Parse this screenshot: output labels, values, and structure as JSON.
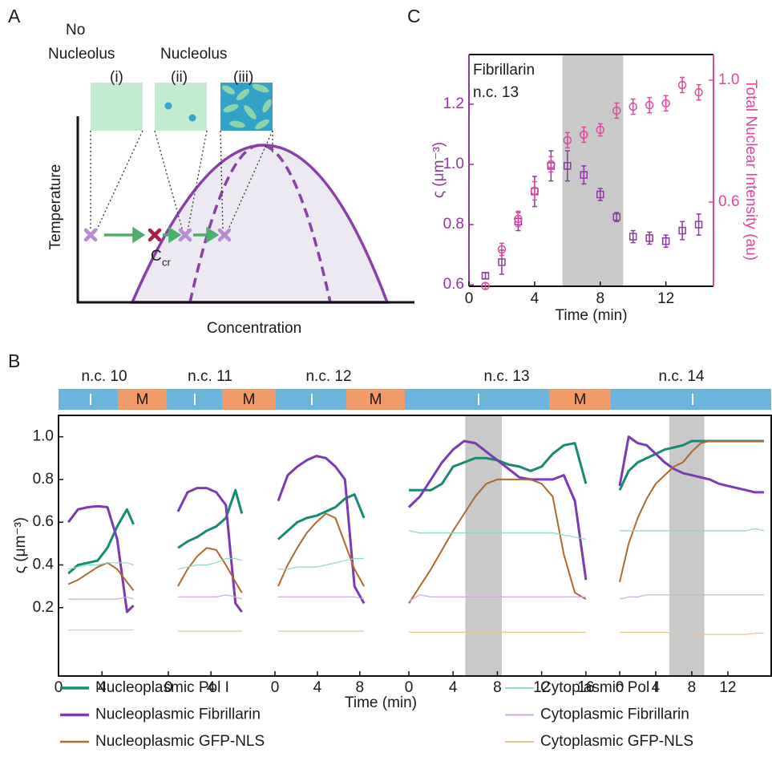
{
  "panel_labels": [
    "A",
    "B",
    "C"
  ],
  "diagram": {
    "no_nucleolus": [
      "No",
      "Nucleolus"
    ],
    "nucleolus": "Nucleolus",
    "states": [
      "(i)",
      "(ii)",
      "(iii)"
    ],
    "y_label": "Temperature",
    "x_label": "Concentration",
    "critical": {
      "main": "C",
      "sub": "cr"
    }
  },
  "cycle_bar": {
    "cycles": [
      "n.c. 10",
      "n.c. 11",
      "n.c. 12",
      "n.c. 13",
      "n.c. 14"
    ],
    "mitosis": [
      "M",
      "M",
      "M",
      "M"
    ]
  },
  "chart_data": [
    {
      "type": "scatter",
      "annotation": [
        "Fibrillarin",
        "n.c. 13"
      ],
      "xlabel": "Time (min)",
      "ylabel": "ς (μm⁻³)",
      "y2label": "Total Nuclear Intensity (au)",
      "xlim": [
        0,
        14.9
      ],
      "xticks": [
        0,
        4,
        8,
        12
      ],
      "ylim": [
        0.595,
        1.365
      ],
      "yticks": [
        0.6,
        0.8,
        {
          "value": 1,
          "label": "1.0"
        },
        1.2
      ],
      "y2lim": [
        0.324,
        1.084
      ],
      "y2ticks": [
        0.6,
        {
          "value": 1,
          "label": "1.0"
        }
      ],
      "shade": [
        5.7,
        9.4
      ],
      "shade_color": "#c9c9c9",
      "x": [
        1,
        2,
        3,
        4,
        5,
        6,
        7,
        8,
        9,
        10,
        11,
        12,
        13,
        14
      ],
      "series": [
        {
          "color": "#8b3a9e",
          "marker": "square",
          "values": [
            0.63,
            0.675,
            0.81,
            0.91,
            0.995,
            0.995,
            0.965,
            0.9,
            0.825,
            0.76,
            0.755,
            0.745,
            0.78,
            0.8
          ],
          "errors": [
            0.01,
            0.04,
            0.03,
            0.05,
            0.05,
            0.05,
            0.03,
            0.02,
            0.015,
            0.02,
            0.02,
            0.02,
            0.03,
            0.035
          ]
        },
        {
          "color": "#e0479e",
          "marker": "circle",
          "axis": "y2",
          "values": [
            0.325,
            0.445,
            0.545,
            0.637,
            0.724,
            0.803,
            0.821,
            0.837,
            0.9,
            0.913,
            0.918,
            0.924,
            0.984,
            0.96
          ],
          "errors": [
            0.01,
            0.02,
            0.025,
            0.03,
            0.025,
            0.025,
            0.025,
            0.02,
            0.025,
            0.025,
            0.025,
            0.025,
            0.025,
            0.025
          ]
        }
      ]
    },
    {
      "type": "line",
      "xlabel": "Time (min)",
      "ylabel": "ς (μm⁻³)",
      "legend": "bottom",
      "ylim": [
        -0.12,
        1.1
      ],
      "yticks": [
        0.2,
        0.4,
        0.6,
        0.8,
        {
          "value": 1,
          "label": "1.0"
        }
      ],
      "panels": [
        {
          "xlim": [
            0,
            7.3
          ],
          "xticks": [
            0,
            4
          ],
          "x": [
            0.9,
            1.8,
            2.7,
            3.6,
            4.5,
            5.4,
            6.3,
            6.9
          ]
        },
        {
          "xlim": [
            0,
            7.3
          ],
          "xticks": [
            0,
            4
          ],
          "x": [
            0.9,
            1.8,
            2.7,
            3.6,
            4.5,
            5.4,
            6.3,
            6.9
          ]
        },
        {
          "xlim": [
            0,
            9
          ],
          "xticks": [
            0,
            4,
            8
          ],
          "x": [
            0.3,
            1.2,
            2.1,
            3.0,
            3.9,
            4.8,
            5.7,
            6.6,
            7.5,
            8.4
          ]
        },
        {
          "xlim": [
            0,
            16.3
          ],
          "xticks": [
            0,
            4,
            8,
            12,
            16
          ],
          "shade": [
            5.1,
            8.4
          ],
          "x": [
            0,
            1,
            2,
            3,
            4,
            5,
            6,
            7,
            8,
            9,
            10,
            11,
            12,
            13,
            14,
            15,
            16
          ]
        },
        {
          "xlim": [
            0,
            16.9
          ],
          "xticks": [
            0,
            4,
            8,
            12
          ],
          "shade": [
            5.5,
            9.4
          ],
          "x": [
            0,
            1,
            2,
            3,
            4,
            5,
            6,
            7,
            8,
            9,
            10,
            11,
            12,
            13,
            14,
            15,
            16
          ]
        }
      ],
      "shade_color": "#c9c9c9",
      "series": [
        {
          "name": "Nucleoplasmic Pol I",
          "color": "#168a73",
          "width": 3,
          "values": [
            [
              0.36,
              0.4,
              0.41,
              0.42,
              0.48,
              0.58,
              0.66,
              0.59
            ],
            [
              0.48,
              0.51,
              0.53,
              0.56,
              0.58,
              0.62,
              0.75,
              0.64
            ],
            [
              0.52,
              0.56,
              0.6,
              0.62,
              0.63,
              0.65,
              0.67,
              0.71,
              0.73,
              0.62
            ],
            [
              0.75,
              0.75,
              0.75,
              0.78,
              0.86,
              0.88,
              0.9,
              0.9,
              0.89,
              0.87,
              0.86,
              0.84,
              0.86,
              0.92,
              0.96,
              0.97,
              0.78
            ],
            [
              0.75,
              0.84,
              0.88,
              0.9,
              0.92,
              0.94,
              0.95,
              0.96,
              0.98,
              0.98,
              0.98,
              0.98,
              0.98,
              0.98,
              0.98,
              0.98,
              0.98
            ]
          ]
        },
        {
          "name": "Nucleoplasmic Fibrillarin",
          "color": "#7a3ab3",
          "width": 3,
          "values": [
            [
              0.6,
              0.66,
              0.67,
              0.675,
              0.67,
              0.52,
              0.18,
              0.21
            ],
            [
              0.65,
              0.74,
              0.76,
              0.76,
              0.74,
              0.68,
              0.22,
              0.18
            ],
            [
              0.7,
              0.82,
              0.86,
              0.89,
              0.91,
              0.9,
              0.86,
              0.8,
              0.3,
              0.22
            ],
            [
              0.67,
              0.72,
              0.8,
              0.88,
              0.94,
              0.98,
              0.97,
              0.93,
              0.89,
              0.85,
              0.81,
              0.8,
              0.8,
              0.8,
              0.82,
              0.7,
              0.33
            ],
            [
              0.77,
              1.0,
              0.97,
              0.96,
              0.92,
              0.88,
              0.85,
              0.83,
              0.82,
              0.81,
              0.8,
              0.78,
              0.77,
              0.76,
              0.75,
              0.74,
              0.74
            ]
          ]
        },
        {
          "name": "Nucleoplasmic GFP-NLS",
          "color": "#b0692a",
          "width": 2,
          "values": [
            [
              0.31,
              0.33,
              0.36,
              0.39,
              0.41,
              0.38,
              0.32,
              0.28
            ],
            [
              0.3,
              0.38,
              0.44,
              0.48,
              0.47,
              0.4,
              0.32,
              0.27
            ],
            [
              0.3,
              0.4,
              0.48,
              0.55,
              0.6,
              0.64,
              0.62,
              0.5,
              0.38,
              0.3
            ],
            [
              0.22,
              0.3,
              0.38,
              0.47,
              0.56,
              0.64,
              0.72,
              0.78,
              0.8,
              0.8,
              0.8,
              0.8,
              0.78,
              0.72,
              0.45,
              0.27,
              0.24
            ],
            [
              0.32,
              0.5,
              0.62,
              0.71,
              0.78,
              0.82,
              0.86,
              0.88,
              0.93,
              0.97,
              0.98,
              0.98,
              0.98,
              0.98,
              0.98,
              0.98,
              0.98
            ]
          ]
        },
        {
          "name": "Cytoplasmic Pol I",
          "color": "#8ed6c6",
          "width": 1.2,
          "values": [
            [
              0.38,
              0.39,
              0.4,
              0.4,
              0.41,
              0.41,
              0.41,
              0.4
            ],
            [
              0.38,
              0.39,
              0.4,
              0.4,
              0.41,
              0.43,
              0.43,
              0.42
            ],
            [
              0.38,
              0.38,
              0.39,
              0.39,
              0.39,
              0.4,
              0.41,
              0.42,
              0.43,
              0.43
            ],
            [
              0.56,
              0.55,
              0.55,
              0.55,
              0.55,
              0.55,
              0.55,
              0.55,
              0.55,
              0.55,
              0.55,
              0.55,
              0.55,
              0.55,
              0.54,
              0.53,
              0.52
            ],
            [
              0.56,
              0.56,
              0.56,
              0.56,
              0.56,
              0.56,
              0.56,
              0.56,
              0.56,
              0.56,
              0.56,
              0.56,
              0.56,
              0.56,
              0.56,
              0.57,
              0.56
            ]
          ]
        },
        {
          "name": "Cytoplasmic Fibrillarin",
          "color": "#caa8e2",
          "width": 1.2,
          "values": [
            [
              0.24,
              0.24,
              0.24,
              0.24,
              0.24,
              0.24,
              0.25,
              0.24
            ],
            [
              0.25,
              0.25,
              0.25,
              0.25,
              0.25,
              0.26,
              0.25,
              0.24
            ],
            [
              0.25,
              0.25,
              0.25,
              0.25,
              0.25,
              0.25,
              0.25,
              0.25,
              0.25,
              0.24
            ],
            [
              0.23,
              0.26,
              0.25,
              0.25,
              0.25,
              0.25,
              0.25,
              0.25,
              0.25,
              0.25,
              0.25,
              0.25,
              0.25,
              0.25,
              0.25,
              0.25,
              0.25
            ],
            [
              0.24,
              0.25,
              0.25,
              0.26,
              0.26,
              0.26,
              0.26,
              0.26,
              0.26,
              0.26,
              0.26,
              0.26,
              0.26,
              0.26,
              0.26,
              0.26,
              0.26
            ]
          ]
        },
        {
          "name": "Cytoplasmic GFP-NLS",
          "color": "#e3c88e",
          "width": 1.2,
          "values": [
            [
              0.095,
              0.095,
              0.095,
              0.095,
              0.095,
              0.095,
              0.095,
              0.095
            ],
            [
              0.09,
              0.09,
              0.09,
              0.09,
              0.09,
              0.09,
              0.09,
              0.09
            ],
            [
              0.09,
              0.09,
              0.09,
              0.09,
              0.09,
              0.09,
              0.09,
              0.09,
              0.09,
              0.09
            ],
            [
              0.085,
              0.085,
              0.085,
              0.085,
              0.085,
              0.085,
              0.085,
              0.085,
              0.085,
              0.085,
              0.085,
              0.085,
              0.085,
              0.085,
              0.085,
              0.085,
              0.085
            ],
            [
              0.085,
              0.085,
              0.085,
              0.085,
              0.085,
              0.085,
              0.08,
              0.08,
              0.08,
              0.075,
              0.075,
              0.075,
              0.075,
              0.075,
              0.075,
              0.08,
              0.08
            ]
          ]
        }
      ]
    }
  ]
}
